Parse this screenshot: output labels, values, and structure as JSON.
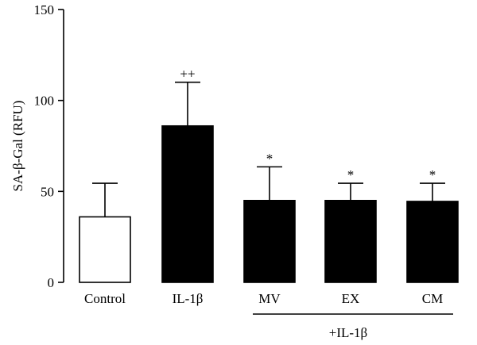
{
  "chart_data": {
    "type": "bar",
    "categories": [
      "Control",
      "IL-1β",
      "MV",
      "EX",
      "CM"
    ],
    "values": [
      36,
      86,
      45,
      45,
      44.5
    ],
    "errors": [
      18.5,
      24,
      18.5,
      9.5,
      10
    ],
    "fills": [
      "#ffffff",
      "#000000",
      "#000000",
      "#000000",
      "#000000"
    ],
    "significance": [
      "",
      "++",
      "*",
      "*",
      "*"
    ],
    "ylabel": "SA-β-Gal (RFU)",
    "ylim": [
      0,
      150
    ],
    "yticks": [
      0,
      50,
      100,
      150
    ],
    "group_label": "+IL-1β",
    "group_members": [
      "MV",
      "EX",
      "CM"
    ],
    "grid": false
  }
}
